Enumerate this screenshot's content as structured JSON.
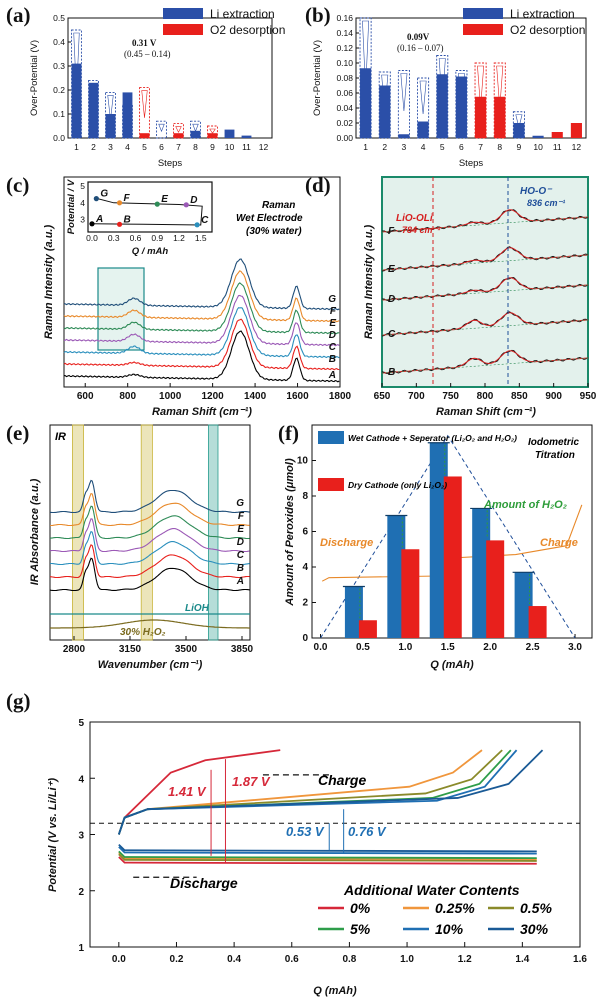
{
  "chart_data": [
    {
      "panel": "(a)",
      "type": "bar",
      "xlabel": "Steps",
      "ylabel": "Over-Potential (V)",
      "ylim": [
        0,
        0.5
      ],
      "yticks": [
        "0.0",
        "0.1",
        "0.2",
        "0.3",
        "0.4",
        "0.5"
      ],
      "categories": [
        "1",
        "2",
        "3",
        "4",
        "5",
        "6",
        "7",
        "8",
        "9",
        "10",
        "11",
        "12"
      ],
      "series": [
        {
          "name": "Li extraction",
          "color": "#2b4fa8",
          "values": [
            0.31,
            0.23,
            0.1,
            0.19,
            0,
            0,
            0,
            0.03,
            0,
            0.035,
            0.01,
            0
          ]
        },
        {
          "name": "O2 desorption",
          "color": "#e8201c",
          "values": [
            0,
            0,
            0,
            0,
            0.02,
            0,
            0.02,
            0,
            0.02,
            0,
            0,
            0
          ]
        }
      ],
      "dashed_extent": [
        0.45,
        0.24,
        0.19,
        0.14,
        0.21,
        0.07,
        0.06,
        0.07,
        0.05,
        0,
        0,
        0
      ],
      "annotation": {
        "value": "0.31 V",
        "range": "(0.45 – 0.14)"
      }
    },
    {
      "panel": "(b)",
      "type": "bar",
      "xlabel": "Steps",
      "ylabel": "Over-Potential (V)",
      "ylim": [
        0,
        0.16
      ],
      "yticks": [
        "0.00",
        "0.02",
        "0.04",
        "0.06",
        "0.08",
        "0.10",
        "0.12",
        "0.14",
        "0.16"
      ],
      "categories": [
        "1",
        "2",
        "3",
        "4",
        "5",
        "6",
        "7",
        "8",
        "9",
        "10",
        "11",
        "12"
      ],
      "series": [
        {
          "name": "Li extraction",
          "color": "#2b4fa8",
          "values": [
            0.093,
            0.07,
            0.005,
            0.022,
            0.085,
            0.082,
            0,
            0,
            0.02,
            0.003,
            0,
            0
          ]
        },
        {
          "name": "O2 desorption",
          "color": "#e8201c",
          "values": [
            0,
            0,
            0,
            0,
            0,
            0,
            0.055,
            0.055,
            0,
            0,
            0.008,
            0.02
          ]
        }
      ],
      "dashed_extent": [
        0.16,
        0.088,
        0.09,
        0.08,
        0.11,
        0.09,
        0.1,
        0.1,
        0.035,
        0,
        0,
        0
      ],
      "annotation": {
        "value": "0.09V",
        "range": "(0.16 – 0.07)"
      }
    },
    {
      "panel": "(c)",
      "type": "line",
      "xlabel": "Raman Shift (cm⁻¹)",
      "ylabel": "Raman Intensity (a.u.)",
      "xlim": [
        500,
        1800
      ],
      "xticks": [
        "600",
        "800",
        "1000",
        "1200",
        "1400",
        "1600",
        "1800"
      ],
      "title_lines": [
        "Raman",
        "Wet Electrode",
        "(30% water)"
      ],
      "series_labels": [
        "G",
        "F",
        "E",
        "D",
        "C",
        "B",
        "A"
      ],
      "series_colors": [
        "#1f4e79",
        "#e8892a",
        "#2e8b57",
        "#9b59b6",
        "#2a8fbd",
        "#e8201c",
        "#000000"
      ],
      "inset": {
        "xlabel": "Q / mAh",
        "ylabel": "Potential / V",
        "xticks": [
          "0.0",
          "0.3",
          "0.6",
          "0.9",
          "1.2",
          "1.5"
        ],
        "yticks": [
          "3",
          "4",
          "5"
        ],
        "points": [
          "A",
          "B",
          "C",
          "D",
          "E",
          "F",
          "G"
        ]
      }
    },
    {
      "panel": "(d)",
      "type": "line",
      "xlabel": "Raman Shift (cm⁻¹)",
      "ylabel": "Raman Intensity (a.u.)",
      "xlim": [
        650,
        950
      ],
      "xticks": [
        "650",
        "700",
        "750",
        "800",
        "850",
        "900",
        "950"
      ],
      "series_labels": [
        "F",
        "E",
        "D",
        "C",
        "B"
      ],
      "series_colors": [
        "#e8892a",
        "#2e8b57",
        "#9b59b6",
        "#2a8fbd",
        "#e8201c"
      ],
      "ann1": {
        "text": "HO-O⁻",
        "sub": "836 cm⁻¹"
      },
      "ann2": {
        "text": "LiO-OLi",
        "sub": "784 cm⁻¹"
      }
    },
    {
      "panel": "(e)",
      "type": "line",
      "xlabel": "Wavenumber (cm⁻¹)",
      "ylabel": "IR Absorbance (a.u.)",
      "xlim": [
        2650,
        3900
      ],
      "xticks": [
        "2800",
        "3150",
        "3500",
        "3850"
      ],
      "label": "IR",
      "series_labels": [
        "G",
        "F",
        "E",
        "D",
        "C",
        "B",
        "A"
      ],
      "series_colors": [
        "#1f4e79",
        "#e8892a",
        "#2e8b57",
        "#9b59b6",
        "#2a8fbd",
        "#e8201c",
        "#000000"
      ],
      "ref1": "LiOH",
      "ref2": "30% H₂O₂"
    },
    {
      "panel": "(f)",
      "type": "bar",
      "xlabel": "Q (mAh)",
      "ylabel": "Amount of Peroxides (μmol)",
      "ylim": [
        0,
        12
      ],
      "xticks": [
        "0.0",
        "0.5",
        "1.0",
        "1.5",
        "2.0",
        "2.5",
        "3.0"
      ],
      "yticks": [
        "0",
        "2",
        "4",
        "6",
        "8",
        "10"
      ],
      "categories": [
        0.5,
        1.0,
        1.5,
        2.0,
        2.5
      ],
      "series": [
        {
          "name": "Wet Cathode + Seperator (Li₂O₂ and H₂O₂)",
          "color": "#1f6fb3",
          "values": [
            2.9,
            6.9,
            11.0,
            7.3,
            3.7
          ]
        },
        {
          "name": "Dry Cathode (only Li₂O₂)",
          "color": "#e8201c",
          "values": [
            1.0,
            5.0,
            9.1,
            5.5,
            1.8
          ]
        }
      ],
      "title_lines": [
        "Iodometric",
        "Titration"
      ],
      "ann_amount": "Amount of H₂O₂",
      "ann_discharge": "Discharge",
      "ann_charge": "Charge"
    },
    {
      "panel": "(g)",
      "type": "line",
      "xlabel": "Q (mAh)",
      "ylabel": "Potential (V vs. Li/Li⁺)",
      "xlim": [
        -0.1,
        1.6
      ],
      "ylim": [
        1,
        5
      ],
      "xticks": [
        "0.0",
        "0.2",
        "0.4",
        "0.6",
        "0.8",
        "1.0",
        "1.2",
        "1.4",
        "1.6"
      ],
      "yticks": [
        "1",
        "2",
        "3",
        "4",
        "5"
      ],
      "legend_title": "Additional Water Contents",
      "series": [
        {
          "name": "0%",
          "color": "#d62839",
          "charge_end": 0.56
        },
        {
          "name": "0.25%",
          "color": "#f0963c",
          "charge_end": 1.26
        },
        {
          "name": "0.5%",
          "color": "#8a8a2a",
          "charge_end": 1.33
        },
        {
          "name": "5%",
          "color": "#2e9d4a",
          "charge_end": 1.36
        },
        {
          "name": "10%",
          "color": "#1f6fb3",
          "charge_end": 1.38
        },
        {
          "name": "30%",
          "color": "#1a5a96",
          "charge_end": 1.47
        }
      ],
      "ann_charge": "Charge",
      "ann_discharge": "Discharge",
      "gap_red_1": "1.41 V",
      "gap_red_2": "1.87 V",
      "gap_blue_1": "0.53 V",
      "gap_blue_2": "0.76 V"
    }
  ]
}
